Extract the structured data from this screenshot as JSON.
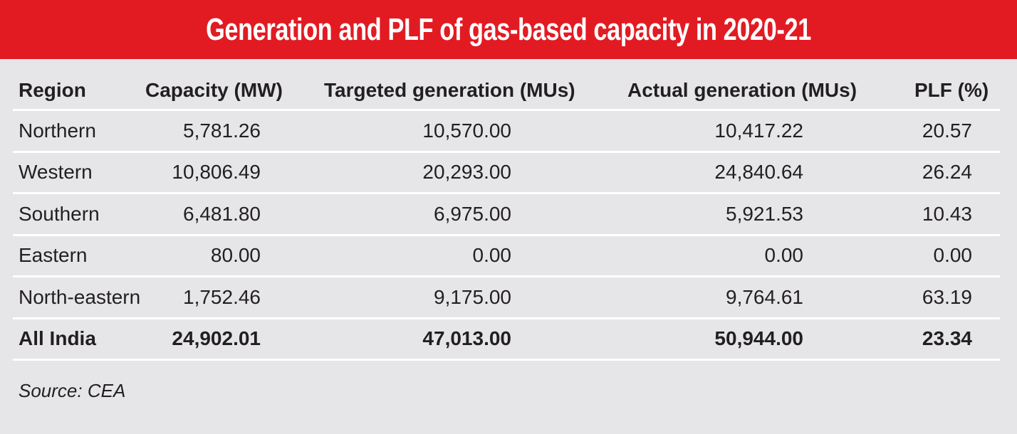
{
  "title": "Generation and PLF of gas-based capacity in 2020-21",
  "colors": {
    "banner": "#e21b23",
    "background": "#e6e6e8",
    "text": "#231f20",
    "rule": "#ffffff"
  },
  "table": {
    "headers": [
      "Region",
      "Capacity (MW)",
      "Targeted generation (MUs)",
      "Actual generation (MUs)",
      "PLF (%)"
    ],
    "rows": [
      [
        "Northern",
        "5,781.26",
        "10,570.00",
        "10,417.22",
        "20.57"
      ],
      [
        "Western",
        "10,806.49",
        "20,293.00",
        "24,840.64",
        "26.24"
      ],
      [
        "Southern",
        "6,481.80",
        "6,975.00",
        "5,921.53",
        "10.43"
      ],
      [
        "Eastern",
        "80.00",
        "0.00",
        "0.00",
        "0.00"
      ],
      [
        "North-eastern",
        "1,752.46",
        "9,175.00",
        "9,764.61",
        "63.19"
      ]
    ],
    "total": [
      "All India",
      "24,902.01",
      "47,013.00",
      "50,944.00",
      "23.34"
    ]
  },
  "source": "Source: CEA",
  "chart_data": {
    "type": "table",
    "title": "Generation and PLF of gas-based capacity in 2020-21",
    "columns": [
      "Region",
      "Capacity (MW)",
      "Targeted generation (MUs)",
      "Actual generation (MUs)",
      "PLF (%)"
    ],
    "rows": [
      {
        "Region": "Northern",
        "Capacity (MW)": 5781.26,
        "Targeted generation (MUs)": 10570.0,
        "Actual generation (MUs)": 10417.22,
        "PLF (%)": 20.57
      },
      {
        "Region": "Western",
        "Capacity (MW)": 10806.49,
        "Targeted generation (MUs)": 20293.0,
        "Actual generation (MUs)": 24840.64,
        "PLF (%)": 26.24
      },
      {
        "Region": "Southern",
        "Capacity (MW)": 6481.8,
        "Targeted generation (MUs)": 6975.0,
        "Actual generation (MUs)": 5921.53,
        "PLF (%)": 10.43
      },
      {
        "Region": "Eastern",
        "Capacity (MW)": 80.0,
        "Targeted generation (MUs)": 0.0,
        "Actual generation (MUs)": 0.0,
        "PLF (%)": 0.0
      },
      {
        "Region": "North-eastern",
        "Capacity (MW)": 1752.46,
        "Targeted generation (MUs)": 9175.0,
        "Actual generation (MUs)": 9764.61,
        "PLF (%)": 63.19
      },
      {
        "Region": "All India",
        "Capacity (MW)": 24902.01,
        "Targeted generation (MUs)": 47013.0,
        "Actual generation (MUs)": 50944.0,
        "PLF (%)": 23.34
      }
    ],
    "source": "Source: CEA"
  }
}
